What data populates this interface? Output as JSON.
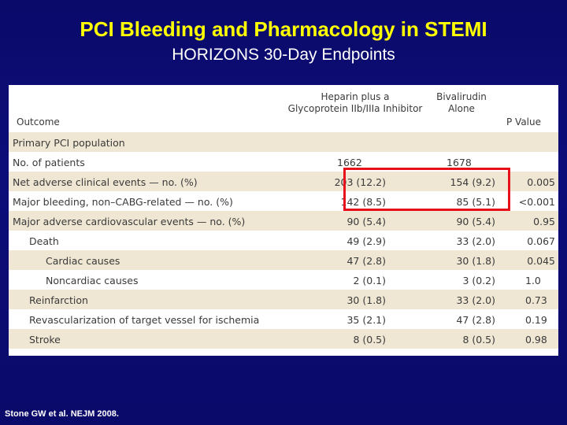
{
  "slide": {
    "title": "PCI Bleeding and Pharmacology in STEMI",
    "subtitle": "HORIZONS 30-Day Endpoints",
    "citation": "Stone GW et al.  NEJM 2008."
  },
  "table": {
    "headers": {
      "outcome": "Outcome",
      "heparin_line1": "Heparin plus a",
      "heparin_line2": "Glycoprotein IIb/IIIa Inhibitor",
      "biv_line1": "Bivalirudin",
      "biv_line2": "Alone",
      "p": "P Value"
    },
    "rows": [
      {
        "label": "Primary PCI population",
        "heparin": "",
        "biv": "",
        "p": ""
      },
      {
        "label": "No. of patients",
        "heparin": "1662",
        "biv": "1678",
        "p": ""
      },
      {
        "label": "Net adverse clinical events — no. (%)",
        "heparin": "203 (12.2)",
        "biv": "154 (9.2)",
        "p": "0.005"
      },
      {
        "label": "Major bleeding, non–CABG-related — no. (%)",
        "heparin": "142 (8.5)",
        "biv": "85 (5.1)",
        "p": "<0.001"
      },
      {
        "label": "Major adverse cardiovascular events — no. (%)",
        "heparin": "90 (5.4)",
        "biv": "90 (5.4)",
        "p": "0.95"
      },
      {
        "label": "Death",
        "heparin": "49 (2.9)",
        "biv": "33 (2.0)",
        "p": "0.067"
      },
      {
        "label": "Cardiac causes",
        "heparin": "47 (2.8)",
        "biv": "30 (1.8)",
        "p": "0.045"
      },
      {
        "label": "Noncardiac causes",
        "heparin": "2 (0.1)",
        "biv": "3 (0.2)",
        "p": "1.0"
      },
      {
        "label": "Reinfarction",
        "heparin": "30 (1.8)",
        "biv": "33 (2.0)",
        "p": "0.73"
      },
      {
        "label": "Revascularization of target vessel for ischemia",
        "heparin": "35 (2.1)",
        "biv": "47 (2.8)",
        "p": "0.19"
      },
      {
        "label": "Stroke",
        "heparin": "8 (0.5)",
        "biv": "8 (0.5)",
        "p": "0.98"
      }
    ]
  },
  "colors": {
    "background": "#0a0a6a",
    "title": "#ffff00",
    "row_shade": "#efe7d3",
    "highlight_box": "#e8101a"
  }
}
